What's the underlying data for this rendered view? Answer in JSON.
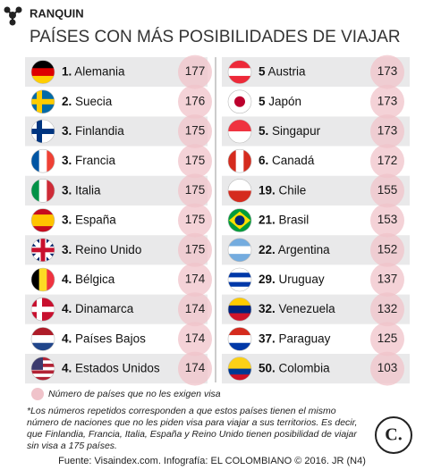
{
  "header": {
    "kicker": "RANQUIN",
    "title": "PAÍSES CON MÁS POSIBILIDADES DE VIAJAR"
  },
  "table": {
    "left": [
      {
        "rank": "1.",
        "country": "Alemania",
        "value": 177
      },
      {
        "rank": "2.",
        "country": "Suecia",
        "value": 176
      },
      {
        "rank": "3.",
        "country": "Finlandia",
        "value": 175
      },
      {
        "rank": "3.",
        "country": "Francia",
        "value": 175
      },
      {
        "rank": "3.",
        "country": "Italia",
        "value": 175
      },
      {
        "rank": "3.",
        "country": "España",
        "value": 175
      },
      {
        "rank": "3.",
        "country": "Reino Unido",
        "value": 175
      },
      {
        "rank": "4.",
        "country": "Bélgica",
        "value": 174
      },
      {
        "rank": "4.",
        "country": "Dinamarca",
        "value": 174
      },
      {
        "rank": "4.",
        "country": "Países Bajos",
        "value": 174
      },
      {
        "rank": "4.",
        "country": "Estados Unidos",
        "value": 174
      }
    ],
    "right": [
      {
        "rank": "5",
        "country": "Austria",
        "value": 173
      },
      {
        "rank": "5",
        "country": "Japón",
        "value": 173
      },
      {
        "rank": "5.",
        "country": "Singapur",
        "value": 173
      },
      {
        "rank": "6.",
        "country": "Canadá",
        "value": 172
      },
      {
        "rank": "19.",
        "country": "Chile",
        "value": 155
      },
      {
        "rank": "21.",
        "country": "Brasil",
        "value": 153
      },
      {
        "rank": "22.",
        "country": "Argentina",
        "value": 152
      },
      {
        "rank": "29.",
        "country": "Uruguay",
        "value": 137
      },
      {
        "rank": "32.",
        "country": "Venezuela",
        "value": 132
      },
      {
        "rank": "37.",
        "country": "Paraguay",
        "value": 125
      },
      {
        "rank": "50.",
        "country": "Colombia",
        "value": 103
      }
    ]
  },
  "legend": "Número de países que no les exigen visa",
  "note": "*Los números repetidos corresponden a que estos países tienen el mismo número de naciones que no les piden visa para viajar a sus territorios. Es decir, que Finlandia, Francia, Italia, España y Reino Unido tienen posibilidad de viajar sin visa a 175 países.",
  "logo": "C.",
  "source": "Fuente: Visaindex.com. Infografía: EL COLOMBIANO © 2016. JR (N4)"
}
